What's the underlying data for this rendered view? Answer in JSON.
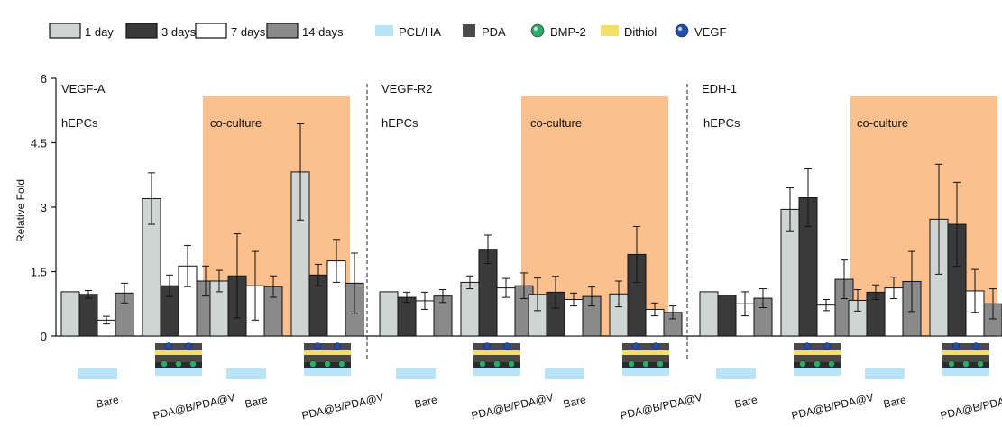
{
  "legend": {
    "days": [
      {
        "label": "1 day",
        "color": "#cfd5d2"
      },
      {
        "label": "3 days",
        "color": "#3a3a3a"
      },
      {
        "label": "7 days",
        "color": "#ffffff"
      },
      {
        "label": "14 days",
        "color": "#8a8a8a"
      }
    ],
    "materials": [
      {
        "label": "PCL/HA",
        "icon": "pcl-ha-rect",
        "color": "#b9e3f6"
      },
      {
        "label": "PDA",
        "icon": "pda-square",
        "color": "#4a4a4a"
      },
      {
        "label": "BMP-2",
        "icon": "bmp2-sphere",
        "color": "#2fa86a"
      },
      {
        "label": "Dithiol",
        "icon": "dithiol-rect",
        "color": "#f2df6a"
      },
      {
        "label": "VEGF",
        "icon": "vegf-sphere",
        "color": "#1f4fa6"
      }
    ]
  },
  "chart_data": {
    "type": "bar",
    "ylabel": "Relative Fold",
    "ylim": [
      0,
      6
    ],
    "yticks": [
      "0",
      "1.5",
      "3",
      "4.5",
      "6"
    ],
    "shaded_color": "#fbc08d",
    "panels": [
      {
        "title": "VEGF-A",
        "region_labels": [
          "hEPCs",
          "co-culture"
        ],
        "groups": [
          {
            "label": "Bare",
            "values": [
              1.03,
              0.97,
              0.37,
              1.0
            ],
            "errors": [
              0.0,
              0.09,
              0.09,
              0.23
            ]
          },
          {
            "label": "PDA@B/PDA@V",
            "values": [
              3.2,
              1.17,
              1.63,
              1.28
            ],
            "errors": [
              0.6,
              0.25,
              0.48,
              0.35
            ]
          },
          {
            "label": "Bare",
            "values": [
              1.28,
              1.4,
              1.17,
              1.15
            ],
            "errors": [
              0.25,
              0.98,
              0.8,
              0.25
            ]
          },
          {
            "label": "PDA@B/PDA@V",
            "values": [
              3.82,
              1.42,
              1.75,
              1.23
            ],
            "errors": [
              1.12,
              0.25,
              0.5,
              0.7
            ]
          }
        ]
      },
      {
        "title": "VEGF-R2",
        "region_labels": [
          "hEPCs",
          "co-culture"
        ],
        "groups": [
          {
            "label": "Bare",
            "values": [
              1.03,
              0.9,
              0.82,
              0.93
            ],
            "errors": [
              0.0,
              0.12,
              0.2,
              0.15
            ]
          },
          {
            "label": "PDA@B/PDA@V",
            "values": [
              1.25,
              2.02,
              1.12,
              1.17
            ],
            "errors": [
              0.15,
              0.33,
              0.22,
              0.3
            ]
          },
          {
            "label": "Bare",
            "values": [
              0.97,
              1.02,
              0.85,
              0.92
            ],
            "errors": [
              0.38,
              0.37,
              0.15,
              0.22
            ]
          },
          {
            "label": "PDA@B/PDA@V",
            "values": [
              0.98,
              1.9,
              0.62,
              0.55
            ],
            "errors": [
              0.3,
              0.65,
              0.15,
              0.15
            ]
          }
        ]
      },
      {
        "title": "EDH-1",
        "region_labels": [
          "hEPCs",
          "co-culture"
        ],
        "groups": [
          {
            "label": "Bare",
            "values": [
              1.03,
              0.95,
              0.75,
              0.88
            ],
            "errors": [
              0.0,
              0.0,
              0.28,
              0.22
            ]
          },
          {
            "label": "PDA@B/PDA@V",
            "values": [
              2.95,
              3.22,
              0.72,
              1.32
            ],
            "errors": [
              0.5,
              0.67,
              0.13,
              0.45
            ]
          },
          {
            "label": "Bare",
            "values": [
              0.83,
              1.02,
              1.12,
              1.27
            ],
            "errors": [
              0.25,
              0.17,
              0.25,
              0.7
            ]
          },
          {
            "label": "PDA@B/PDA@V",
            "values": [
              2.72,
              2.6,
              1.05,
              0.75
            ],
            "errors": [
              1.28,
              0.98,
              0.5,
              0.35
            ]
          }
        ]
      }
    ]
  }
}
